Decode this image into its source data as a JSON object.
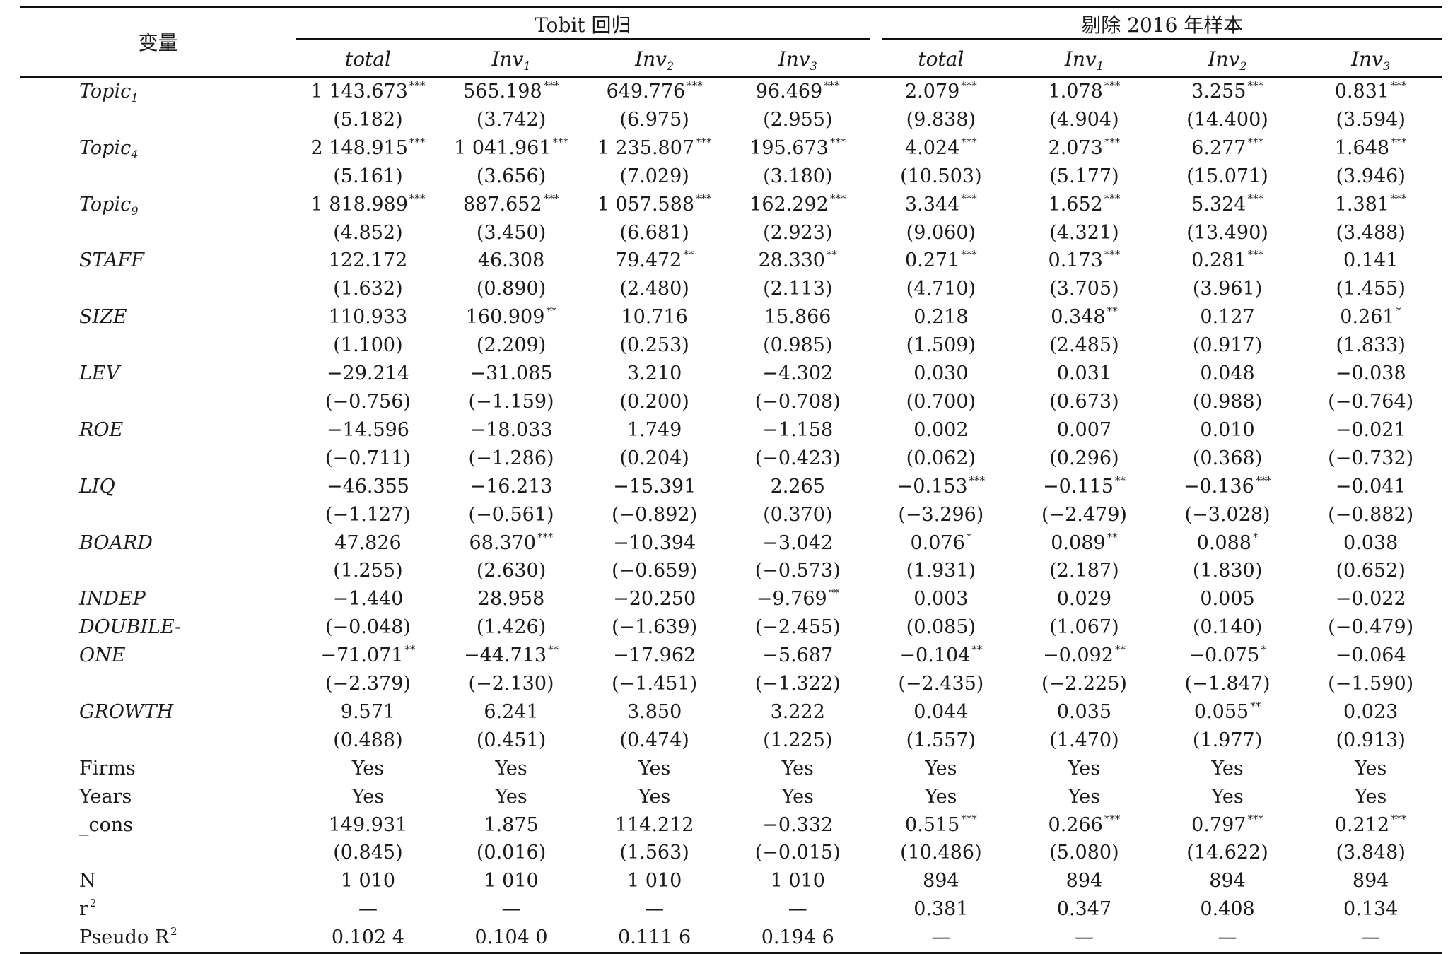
{
  "header": {
    "variable": "变量",
    "group1": "Tobit 回归",
    "group2": "剔除 2016 年样本",
    "columns": [
      {
        "base": "total",
        "sub": ""
      },
      {
        "base": "Inv",
        "sub": "1"
      },
      {
        "base": "Inv",
        "sub": "2"
      },
      {
        "base": "Inv",
        "sub": "3"
      },
      {
        "base": "total",
        "sub": ""
      },
      {
        "base": "Inv",
        "sub": "1"
      },
      {
        "base": "Inv",
        "sub": "2"
      },
      {
        "base": "Inv",
        "sub": "3"
      }
    ]
  },
  "rows": [
    {
      "label": "Topic",
      "sub": "1",
      "italic": true,
      "cells": [
        [
          "1 143.673",
          "***"
        ],
        [
          "565.198",
          "***"
        ],
        [
          "649.776",
          "***"
        ],
        [
          "96.469",
          "***"
        ],
        [
          "2.079",
          "***"
        ],
        [
          "1.078",
          "***"
        ],
        [
          "3.255",
          "***"
        ],
        [
          "0.831",
          "***"
        ]
      ]
    },
    {
      "label": "",
      "cells": [
        [
          "(5.182)",
          ""
        ],
        [
          "(3.742)",
          ""
        ],
        [
          "(6.975)",
          ""
        ],
        [
          "(2.955)",
          ""
        ],
        [
          "(9.838)",
          ""
        ],
        [
          "(4.904)",
          ""
        ],
        [
          "(14.400)",
          ""
        ],
        [
          "(3.594)",
          ""
        ]
      ]
    },
    {
      "label": "Topic",
      "sub": "4",
      "italic": true,
      "cells": [
        [
          "2 148.915",
          "***"
        ],
        [
          "1 041.961",
          "***"
        ],
        [
          "1 235.807",
          "***"
        ],
        [
          "195.673",
          "***"
        ],
        [
          "4.024",
          "***"
        ],
        [
          "2.073",
          "***"
        ],
        [
          "6.277",
          "***"
        ],
        [
          "1.648",
          "***"
        ]
      ]
    },
    {
      "label": "",
      "cells": [
        [
          "(5.161)",
          ""
        ],
        [
          "(3.656)",
          ""
        ],
        [
          "(7.029)",
          ""
        ],
        [
          "(3.180)",
          ""
        ],
        [
          "(10.503)",
          ""
        ],
        [
          "(5.177)",
          ""
        ],
        [
          "(15.071)",
          ""
        ],
        [
          "(3.946)",
          ""
        ]
      ]
    },
    {
      "label": "Topic",
      "sub": "9",
      "italic": true,
      "cells": [
        [
          "1 818.989",
          "***"
        ],
        [
          "887.652",
          "***"
        ],
        [
          "1 057.588",
          "***"
        ],
        [
          "162.292",
          "***"
        ],
        [
          "3.344",
          "***"
        ],
        [
          "1.652",
          "***"
        ],
        [
          "5.324",
          "***"
        ],
        [
          "1.381",
          "***"
        ]
      ]
    },
    {
      "label": "",
      "cells": [
        [
          "(4.852)",
          ""
        ],
        [
          "(3.450)",
          ""
        ],
        [
          "(6.681)",
          ""
        ],
        [
          "(2.923)",
          ""
        ],
        [
          "(9.060)",
          ""
        ],
        [
          "(4.321)",
          ""
        ],
        [
          "(13.490)",
          ""
        ],
        [
          "(3.488)",
          ""
        ]
      ]
    },
    {
      "label": "STAFF",
      "italic": true,
      "cells": [
        [
          "122.172",
          ""
        ],
        [
          "46.308",
          ""
        ],
        [
          "79.472",
          "**"
        ],
        [
          "28.330",
          "**"
        ],
        [
          "0.271",
          "***"
        ],
        [
          "0.173",
          "***"
        ],
        [
          "0.281",
          "***"
        ],
        [
          "0.141",
          ""
        ]
      ]
    },
    {
      "label": "",
      "cells": [
        [
          "(1.632)",
          ""
        ],
        [
          "(0.890)",
          ""
        ],
        [
          "(2.480)",
          ""
        ],
        [
          "(2.113)",
          ""
        ],
        [
          "(4.710)",
          ""
        ],
        [
          "(3.705)",
          ""
        ],
        [
          "(3.961)",
          ""
        ],
        [
          "(1.455)",
          ""
        ]
      ]
    },
    {
      "label": "SIZE",
      "italic": true,
      "cells": [
        [
          "110.933",
          ""
        ],
        [
          "160.909",
          "**"
        ],
        [
          "10.716",
          ""
        ],
        [
          "15.866",
          ""
        ],
        [
          "0.218",
          ""
        ],
        [
          "0.348",
          "**"
        ],
        [
          "0.127",
          ""
        ],
        [
          "0.261",
          "*"
        ]
      ]
    },
    {
      "label": "",
      "cells": [
        [
          "(1.100)",
          ""
        ],
        [
          "(2.209)",
          ""
        ],
        [
          "(0.253)",
          ""
        ],
        [
          "(0.985)",
          ""
        ],
        [
          "(1.509)",
          ""
        ],
        [
          "(2.485)",
          ""
        ],
        [
          "(0.917)",
          ""
        ],
        [
          "(1.833)",
          ""
        ]
      ]
    },
    {
      "label": "LEV",
      "italic": true,
      "cells": [
        [
          "−29.214",
          ""
        ],
        [
          "−31.085",
          ""
        ],
        [
          "3.210",
          ""
        ],
        [
          "−4.302",
          ""
        ],
        [
          "0.030",
          ""
        ],
        [
          "0.031",
          ""
        ],
        [
          "0.048",
          ""
        ],
        [
          "−0.038",
          ""
        ]
      ]
    },
    {
      "label": "",
      "cells": [
        [
          "(−0.756)",
          ""
        ],
        [
          "(−1.159)",
          ""
        ],
        [
          "(0.200)",
          ""
        ],
        [
          "(−0.708)",
          ""
        ],
        [
          "(0.700)",
          ""
        ],
        [
          "(0.673)",
          ""
        ],
        [
          "(0.988)",
          ""
        ],
        [
          "(−0.764)",
          ""
        ]
      ]
    },
    {
      "label": "ROE",
      "italic": true,
      "cells": [
        [
          "−14.596",
          ""
        ],
        [
          "−18.033",
          ""
        ],
        [
          "1.749",
          ""
        ],
        [
          "−1.158",
          ""
        ],
        [
          "0.002",
          ""
        ],
        [
          "0.007",
          ""
        ],
        [
          "0.010",
          ""
        ],
        [
          "−0.021",
          ""
        ]
      ]
    },
    {
      "label": "",
      "cells": [
        [
          "(−0.711)",
          ""
        ],
        [
          "(−1.286)",
          ""
        ],
        [
          "(0.204)",
          ""
        ],
        [
          "(−0.423)",
          ""
        ],
        [
          "(0.062)",
          ""
        ],
        [
          "(0.296)",
          ""
        ],
        [
          "(0.368)",
          ""
        ],
        [
          "(−0.732)",
          ""
        ]
      ]
    },
    {
      "label": "LIQ",
      "italic": true,
      "cells": [
        [
          "−46.355",
          ""
        ],
        [
          "−16.213",
          ""
        ],
        [
          "−15.391",
          ""
        ],
        [
          "2.265",
          ""
        ],
        [
          "−0.153",
          "***"
        ],
        [
          "−0.115",
          "**"
        ],
        [
          "−0.136",
          "***"
        ],
        [
          "−0.041",
          ""
        ]
      ]
    },
    {
      "label": "",
      "cells": [
        [
          "(−1.127)",
          ""
        ],
        [
          "(−0.561)",
          ""
        ],
        [
          "(−0.892)",
          ""
        ],
        [
          "(0.370)",
          ""
        ],
        [
          "(−3.296)",
          ""
        ],
        [
          "(−2.479)",
          ""
        ],
        [
          "(−3.028)",
          ""
        ],
        [
          "(−0.882)",
          ""
        ]
      ]
    },
    {
      "label": "BOARD",
      "italic": true,
      "cells": [
        [
          "47.826",
          ""
        ],
        [
          "68.370",
          "***"
        ],
        [
          "−10.394",
          ""
        ],
        [
          "−3.042",
          ""
        ],
        [
          "0.076",
          "*"
        ],
        [
          "0.089",
          "**"
        ],
        [
          "0.088",
          "*"
        ],
        [
          "0.038",
          ""
        ]
      ]
    },
    {
      "label": "",
      "cells": [
        [
          "(1.255)",
          ""
        ],
        [
          "(2.630)",
          ""
        ],
        [
          "(−0.659)",
          ""
        ],
        [
          "(−0.573)",
          ""
        ],
        [
          "(1.931)",
          ""
        ],
        [
          "(2.187)",
          ""
        ],
        [
          "(1.830)",
          ""
        ],
        [
          "(0.652)",
          ""
        ]
      ]
    },
    {
      "label": "INDEP",
      "italic": true,
      "cells": [
        [
          "−1.440",
          ""
        ],
        [
          "28.958",
          ""
        ],
        [
          "−20.250",
          ""
        ],
        [
          "−9.769",
          "**"
        ],
        [
          "0.003",
          ""
        ],
        [
          "0.029",
          ""
        ],
        [
          "0.005",
          ""
        ],
        [
          "−0.022",
          ""
        ]
      ]
    },
    {
      "label": "DOUBILE-",
      "italic": true,
      "cells": [
        [
          "(−0.048)",
          ""
        ],
        [
          "(1.426)",
          ""
        ],
        [
          "(−1.639)",
          ""
        ],
        [
          "(−2.455)",
          ""
        ],
        [
          "(0.085)",
          ""
        ],
        [
          "(1.067)",
          ""
        ],
        [
          "(0.140)",
          ""
        ],
        [
          "(−0.479)",
          ""
        ]
      ]
    },
    {
      "label": "ONE",
      "italic": true,
      "cells": [
        [
          "−71.071",
          "**"
        ],
        [
          "−44.713",
          "**"
        ],
        [
          "−17.962",
          ""
        ],
        [
          "−5.687",
          ""
        ],
        [
          "−0.104",
          "**"
        ],
        [
          "−0.092",
          "**"
        ],
        [
          "−0.075",
          "*"
        ],
        [
          "−0.064",
          ""
        ]
      ]
    },
    {
      "label": "",
      "cells": [
        [
          "(−2.379)",
          ""
        ],
        [
          "(−2.130)",
          ""
        ],
        [
          "(−1.451)",
          ""
        ],
        [
          "(−1.322)",
          ""
        ],
        [
          "(−2.435)",
          ""
        ],
        [
          "(−2.225)",
          ""
        ],
        [
          "(−1.847)",
          ""
        ],
        [
          "(−1.590)",
          ""
        ]
      ]
    },
    {
      "label": "GROWTH",
      "italic": true,
      "cells": [
        [
          "9.571",
          ""
        ],
        [
          "6.241",
          ""
        ],
        [
          "3.850",
          ""
        ],
        [
          "3.222",
          ""
        ],
        [
          "0.044",
          ""
        ],
        [
          "0.035",
          ""
        ],
        [
          "0.055",
          "**"
        ],
        [
          "0.023",
          ""
        ]
      ]
    },
    {
      "label": "",
      "cells": [
        [
          "(0.488)",
          ""
        ],
        [
          "(0.451)",
          ""
        ],
        [
          "(0.474)",
          ""
        ],
        [
          "(1.225)",
          ""
        ],
        [
          "(1.557)",
          ""
        ],
        [
          "(1.470)",
          ""
        ],
        [
          "(1.977)",
          ""
        ],
        [
          "(0.913)",
          ""
        ]
      ]
    },
    {
      "label": "Firms",
      "italic": false,
      "cells": [
        [
          "Yes",
          ""
        ],
        [
          "Yes",
          ""
        ],
        [
          "Yes",
          ""
        ],
        [
          "Yes",
          ""
        ],
        [
          "Yes",
          ""
        ],
        [
          "Yes",
          ""
        ],
        [
          "Yes",
          ""
        ],
        [
          "Yes",
          ""
        ]
      ]
    },
    {
      "label": "Years",
      "italic": false,
      "cells": [
        [
          "Yes",
          ""
        ],
        [
          "Yes",
          ""
        ],
        [
          "Yes",
          ""
        ],
        [
          "Yes",
          ""
        ],
        [
          "Yes",
          ""
        ],
        [
          "Yes",
          ""
        ],
        [
          "Yes",
          ""
        ],
        [
          "Yes",
          ""
        ]
      ]
    },
    {
      "label": "_cons",
      "italic": false,
      "cells": [
        [
          "149.931",
          ""
        ],
        [
          "1.875",
          ""
        ],
        [
          "114.212",
          ""
        ],
        [
          "−0.332",
          ""
        ],
        [
          "0.515",
          "***"
        ],
        [
          "0.266",
          "***"
        ],
        [
          "0.797",
          "***"
        ],
        [
          "0.212",
          "***"
        ]
      ]
    },
    {
      "label": "",
      "cells": [
        [
          "(0.845)",
          ""
        ],
        [
          "(0.016)",
          ""
        ],
        [
          "(1.563)",
          ""
        ],
        [
          "(−0.015)",
          ""
        ],
        [
          "(10.486)",
          ""
        ],
        [
          "(5.080)",
          ""
        ],
        [
          "(14.622)",
          ""
        ],
        [
          "(3.848)",
          ""
        ]
      ]
    },
    {
      "label": "N",
      "italic": false,
      "cells": [
        [
          "1 010",
          ""
        ],
        [
          "1 010",
          ""
        ],
        [
          "1 010",
          ""
        ],
        [
          "1 010",
          ""
        ],
        [
          "894",
          ""
        ],
        [
          "894",
          ""
        ],
        [
          "894",
          ""
        ],
        [
          "894",
          ""
        ]
      ]
    },
    {
      "label": "r",
      "sup": "2",
      "italic": false,
      "cells": [
        [
          "—",
          ""
        ],
        [
          "—",
          ""
        ],
        [
          "—",
          ""
        ],
        [
          "—",
          ""
        ],
        [
          "0.381",
          ""
        ],
        [
          "0.347",
          ""
        ],
        [
          "0.408",
          ""
        ],
        [
          "0.134",
          ""
        ]
      ]
    },
    {
      "label": "Pseudo R",
      "sup": "2",
      "italic": false,
      "cells": [
        [
          "0.102 4",
          ""
        ],
        [
          "0.104 0",
          ""
        ],
        [
          "0.111 6",
          ""
        ],
        [
          "0.194 6",
          ""
        ],
        [
          "—",
          ""
        ],
        [
          "—",
          ""
        ],
        [
          "—",
          ""
        ],
        [
          "—",
          ""
        ]
      ]
    }
  ]
}
